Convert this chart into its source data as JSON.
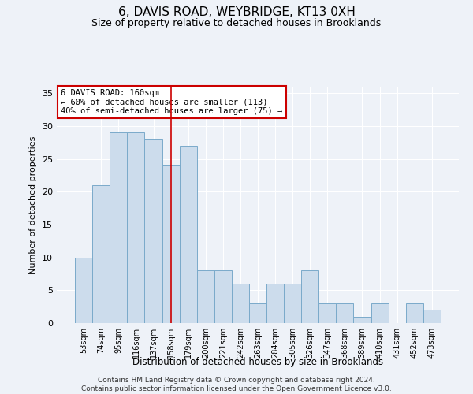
{
  "title_line1": "6, DAVIS ROAD, WEYBRIDGE, KT13 0XH",
  "title_line2": "Size of property relative to detached houses in Brooklands",
  "xlabel": "Distribution of detached houses by size in Brooklands",
  "ylabel": "Number of detached properties",
  "categories": [
    "53sqm",
    "74sqm",
    "95sqm",
    "116sqm",
    "137sqm",
    "158sqm",
    "179sqm",
    "200sqm",
    "221sqm",
    "242sqm",
    "263sqm",
    "284sqm",
    "305sqm",
    "326sqm",
    "347sqm",
    "368sqm",
    "389sqm",
    "410sqm",
    "431sqm",
    "452sqm",
    "473sqm"
  ],
  "values": [
    10,
    21,
    29,
    29,
    28,
    24,
    27,
    8,
    8,
    6,
    3,
    6,
    6,
    8,
    3,
    3,
    1,
    3,
    0,
    3,
    2
  ],
  "bar_color": "#ccdcec",
  "bar_edge_color": "#7aaaca",
  "highlight_index": 5,
  "highlight_line_color": "#cc0000",
  "annotation_text": "6 DAVIS ROAD: 160sqm\n← 60% of detached houses are smaller (113)\n40% of semi-detached houses are larger (75) →",
  "annotation_box_color": "#ffffff",
  "annotation_box_edge_color": "#cc0000",
  "bg_color": "#eef2f8",
  "plot_bg_color": "#eef2f8",
  "grid_color": "#ffffff",
  "ylim": [
    0,
    36
  ],
  "yticks": [
    0,
    5,
    10,
    15,
    20,
    25,
    30,
    35
  ],
  "footnote": "Contains HM Land Registry data © Crown copyright and database right 2024.\nContains public sector information licensed under the Open Government Licence v3.0."
}
